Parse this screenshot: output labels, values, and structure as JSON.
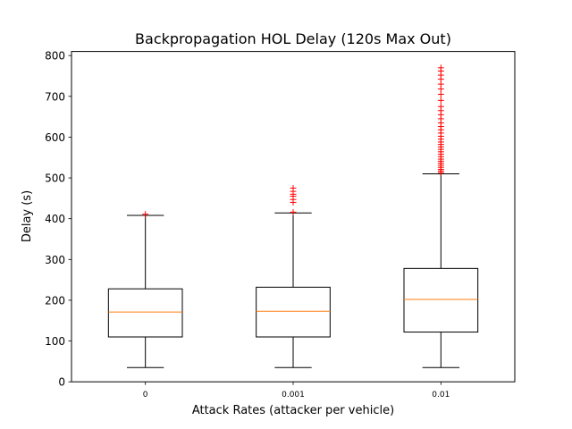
{
  "chart_data": {
    "type": "box",
    "title": "Backpropagation HOL Delay (120s Max Out)",
    "xlabel": "Attack Rates (attacker per vehicle)",
    "ylabel": "Delay (s)",
    "ylim": [
      0,
      810
    ],
    "yticks": [
      0,
      100,
      200,
      300,
      400,
      500,
      600,
      700,
      800
    ],
    "categories": [
      "0",
      "0.001",
      "0.01"
    ],
    "grid": false,
    "boxes": [
      {
        "category": "0",
        "whisker_low": 35,
        "q1": 110,
        "median": 171,
        "q3": 228,
        "whisker_high": 408,
        "outliers": [
          411
        ]
      },
      {
        "category": "0.001",
        "whisker_low": 35,
        "q1": 110,
        "median": 173,
        "q3": 232,
        "whisker_high": 414,
        "outliers": [
          416,
          440,
          447,
          455,
          460,
          467,
          475
        ]
      },
      {
        "category": "0.01",
        "whisker_low": 35,
        "q1": 122,
        "median": 202,
        "q3": 278,
        "whisker_high": 510,
        "outliers": [
          513,
          517,
          521,
          526,
          531,
          536,
          541,
          546,
          552,
          558,
          564,
          570,
          576,
          582,
          588,
          595,
          602,
          610,
          618,
          626,
          635,
          645,
          655,
          665,
          675,
          690,
          705,
          718,
          730,
          742,
          752,
          762,
          770
        ]
      }
    ],
    "colors": {
      "box": "#000000",
      "median": "#ff7f0e",
      "outlier": "#ff0000"
    }
  }
}
